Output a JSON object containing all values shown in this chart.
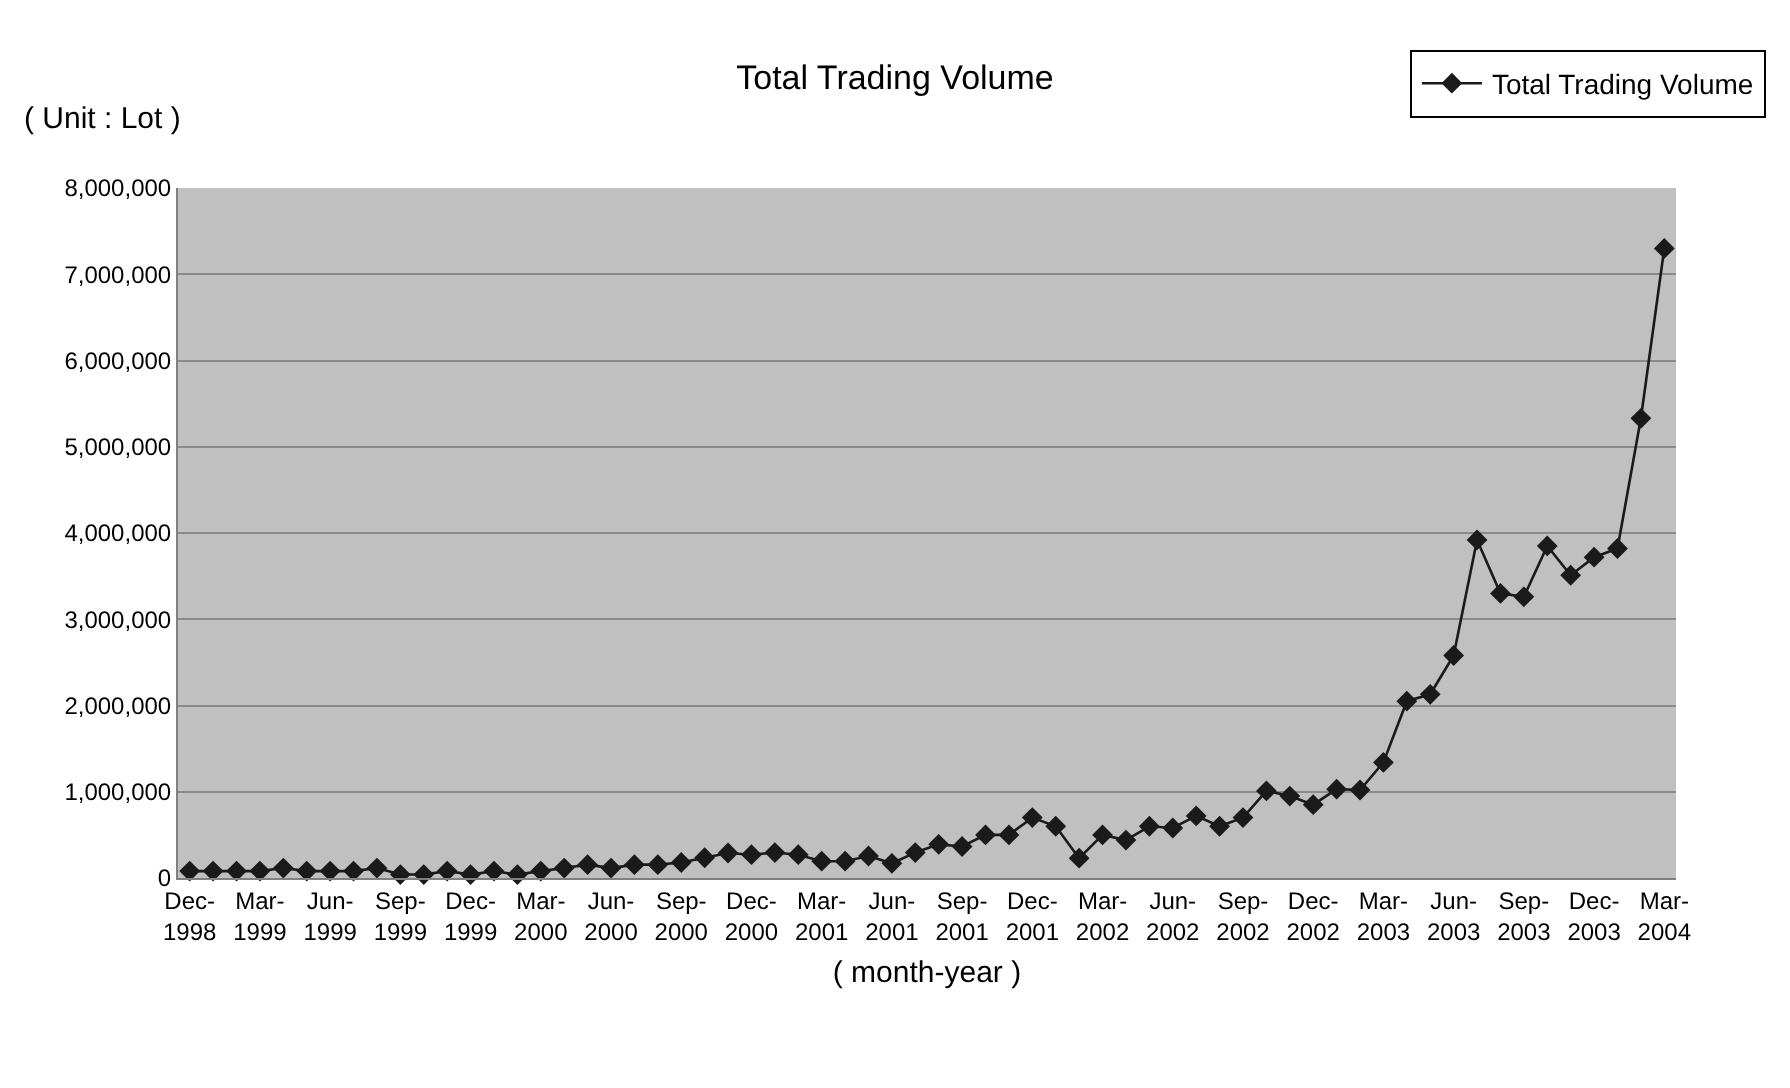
{
  "chart_data": {
    "type": "line",
    "title": "Total Trading Volume",
    "xlabel": "( month-year )",
    "annotations": [
      "( Unit : Lot )"
    ],
    "categories": [
      "Dec-\n1998",
      null,
      null,
      "Mar-\n1999",
      null,
      null,
      "Jun-\n1999",
      null,
      null,
      "Sep-\n1999",
      null,
      null,
      "Dec-\n1999",
      null,
      null,
      "Mar-\n2000",
      null,
      null,
      "Jun-\n2000",
      null,
      null,
      "Sep-\n2000",
      null,
      null,
      "Dec-\n2000",
      null,
      null,
      "Mar-\n2001",
      null,
      null,
      "Jun-\n2001",
      null,
      null,
      "Sep-\n2001",
      null,
      null,
      "Dec-\n2001",
      null,
      null,
      "Mar-\n2002",
      null,
      null,
      "Jun-\n2002",
      null,
      null,
      "Sep-\n2002",
      null,
      null,
      "Dec-\n2002",
      null,
      null,
      "Mar-\n2003",
      null,
      null,
      "Jun-\n2003",
      null,
      null,
      "Sep-\n2003",
      null,
      null,
      "Dec-\n2003",
      null,
      null,
      "Mar-\n2004"
    ],
    "series": [
      {
        "name": "Total Trading Volume",
        "color": "#1a1a1a",
        "values": [
          80000,
          80000,
          80000,
          80000,
          115000,
          80000,
          80000,
          80000,
          115000,
          40000,
          40000,
          80000,
          40000,
          80000,
          40000,
          80000,
          115000,
          155000,
          115000,
          155000,
          155000,
          180000,
          235000,
          290000,
          270000,
          295000,
          270000,
          195000,
          195000,
          255000,
          170000,
          295000,
          390000,
          365000,
          500000,
          500000,
          700000,
          600000,
          230000,
          500000,
          440000,
          600000,
          580000,
          720000,
          600000,
          700000,
          1010000,
          950000,
          850000,
          1030000,
          1020000,
          1340000,
          2050000,
          2130000,
          2580000,
          3920000,
          3300000,
          3260000,
          3850000,
          3510000,
          3720000,
          3820000,
          5330000,
          7300000
        ]
      }
    ],
    "ylim": [
      0,
      8000000
    ],
    "yticks": [
      {
        "value": 0,
        "label": "0"
      },
      {
        "value": 1000000,
        "label": "1,000,000"
      },
      {
        "value": 2000000,
        "label": "2,000,000"
      },
      {
        "value": 3000000,
        "label": "3,000,000"
      },
      {
        "value": 4000000,
        "label": "4,000,000"
      },
      {
        "value": 5000000,
        "label": "5,000,000"
      },
      {
        "value": 6000000,
        "label": "6,000,000"
      },
      {
        "value": 7000000,
        "label": "7,000,000"
      },
      {
        "value": 8000000,
        "label": "8,000,000"
      }
    ],
    "grid": "y",
    "legend": "top right",
    "marker": "diamond",
    "line_style": "solid"
  }
}
